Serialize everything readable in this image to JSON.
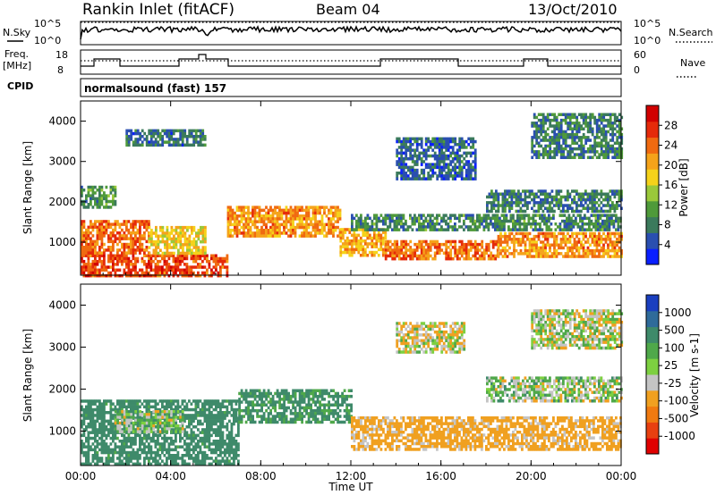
{
  "header": {
    "station": "Rankin Inlet (fitACF)",
    "beam": "Beam 04",
    "date": "13/Oct/2010"
  },
  "summary_panels": {
    "nsky_label": "N.Sky",
    "nsearch_label": "N.Search",
    "nsky_ticks": [
      "10^5",
      "10^0"
    ],
    "nsearch_ticks": [
      "10^5",
      "10^0"
    ],
    "freq_label": "Freq.",
    "freq_unit": "[MHz]",
    "freq_ticks": [
      "18",
      "8"
    ],
    "nave_label": "Nave",
    "nave_ticks": [
      "60",
      "0"
    ],
    "cpid_label": "CPID",
    "cpid_text": "normalsound (fast) 157"
  },
  "chart_data": [
    {
      "type": "heatmap",
      "title": "",
      "xlabel": "",
      "ylabel": "Slant Range [km]",
      "x_ticks": [
        "00:00",
        "04:00",
        "08:00",
        "12:00",
        "16:00",
        "20:00",
        "00:00"
      ],
      "xlim_hours": [
        0,
        24
      ],
      "y_ticks": [
        "1000",
        "2000",
        "3000",
        "4000"
      ],
      "ylim_km": [
        180,
        4500
      ],
      "colorbar": {
        "label": "Power [dB]",
        "ticks": [
          "4",
          "8",
          "12",
          "16",
          "20",
          "24",
          "28"
        ],
        "colors": [
          "#0a1fff",
          "#2a4fb0",
          "#3b7a5c",
          "#4f9a3a",
          "#9ac83a",
          "#f5d21a",
          "#f5a31a",
          "#f06a10",
          "#e52a0a",
          "#d10000"
        ]
      },
      "bands": [
        {
          "start_h": 0.0,
          "end_h": 6.5,
          "r_low": 200,
          "r_high": 700,
          "value": 26
        },
        {
          "start_h": 0.0,
          "end_h": 3.0,
          "r_low": 750,
          "r_high": 1550,
          "value": 24
        },
        {
          "start_h": 3.0,
          "end_h": 5.5,
          "r_low": 700,
          "r_high": 1400,
          "value": 18
        },
        {
          "start_h": 0.0,
          "end_h": 1.5,
          "r_low": 1900,
          "r_high": 2400,
          "value": 10
        },
        {
          "start_h": 6.5,
          "end_h": 11.5,
          "r_low": 1150,
          "r_high": 1900,
          "value": 22
        },
        {
          "start_h": 11.5,
          "end_h": 13.5,
          "r_low": 650,
          "r_high": 1350,
          "value": 20
        },
        {
          "start_h": 13.5,
          "end_h": 18.5,
          "r_low": 600,
          "r_high": 1050,
          "value": 24
        },
        {
          "start_h": 18.5,
          "end_h": 24.0,
          "r_low": 650,
          "r_high": 1250,
          "value": 22
        },
        {
          "start_h": 12.0,
          "end_h": 24.0,
          "r_low": 1300,
          "r_high": 1700,
          "value": 9
        },
        {
          "start_h": 18.0,
          "end_h": 24.0,
          "r_low": 1800,
          "r_high": 2300,
          "value": 8
        },
        {
          "start_h": 2.0,
          "end_h": 5.5,
          "r_low": 3400,
          "r_high": 3800,
          "value": 7
        },
        {
          "start_h": 14.0,
          "end_h": 17.5,
          "r_low": 2600,
          "r_high": 3600,
          "value": 6
        },
        {
          "start_h": 20.0,
          "end_h": 24.0,
          "r_low": 3100,
          "r_high": 4200,
          "value": 8
        }
      ]
    },
    {
      "type": "heatmap",
      "title": "",
      "xlabel": "Time UT",
      "ylabel": "Slant Range [km]",
      "x_ticks": [
        "00:00",
        "04:00",
        "08:00",
        "12:00",
        "16:00",
        "20:00",
        "00:00"
      ],
      "xlim_hours": [
        0,
        24
      ],
      "y_ticks": [
        "1000",
        "2000",
        "3000",
        "4000"
      ],
      "ylim_km": [
        180,
        4500
      ],
      "colorbar": {
        "label": "Velocity [m s-1]",
        "ticks": [
          "1000",
          "500",
          "100",
          "25",
          "-25",
          "-100",
          "-500",
          "-1000"
        ],
        "colors": [
          "#1a3fbf",
          "#2f6b9a",
          "#3e8a6a",
          "#4fa84a",
          "#7dd040",
          "#c4c4c4",
          "#f0a020",
          "#f07a10",
          "#e84010",
          "#e00000"
        ]
      },
      "bands": [
        {
          "start_h": 0.0,
          "end_h": 7.0,
          "r_low": 250,
          "r_high": 1750,
          "value": 220
        },
        {
          "start_h": 1.5,
          "end_h": 4.5,
          "r_low": 1000,
          "r_high": 1500,
          "value": 0
        },
        {
          "start_h": 7.0,
          "end_h": 12.0,
          "r_low": 1200,
          "r_high": 2000,
          "value": 160
        },
        {
          "start_h": 12.0,
          "end_h": 24.0,
          "r_low": 600,
          "r_high": 1350,
          "value": -180
        },
        {
          "start_h": 18.0,
          "end_h": 24.0,
          "r_low": 1700,
          "r_high": 2300,
          "value": 0
        },
        {
          "start_h": 14.0,
          "end_h": 17.0,
          "r_low": 2900,
          "r_high": 3600,
          "value": -70
        },
        {
          "start_h": 20.0,
          "end_h": 24.0,
          "r_low": 3000,
          "r_high": 3900,
          "value": -40
        }
      ]
    }
  ]
}
